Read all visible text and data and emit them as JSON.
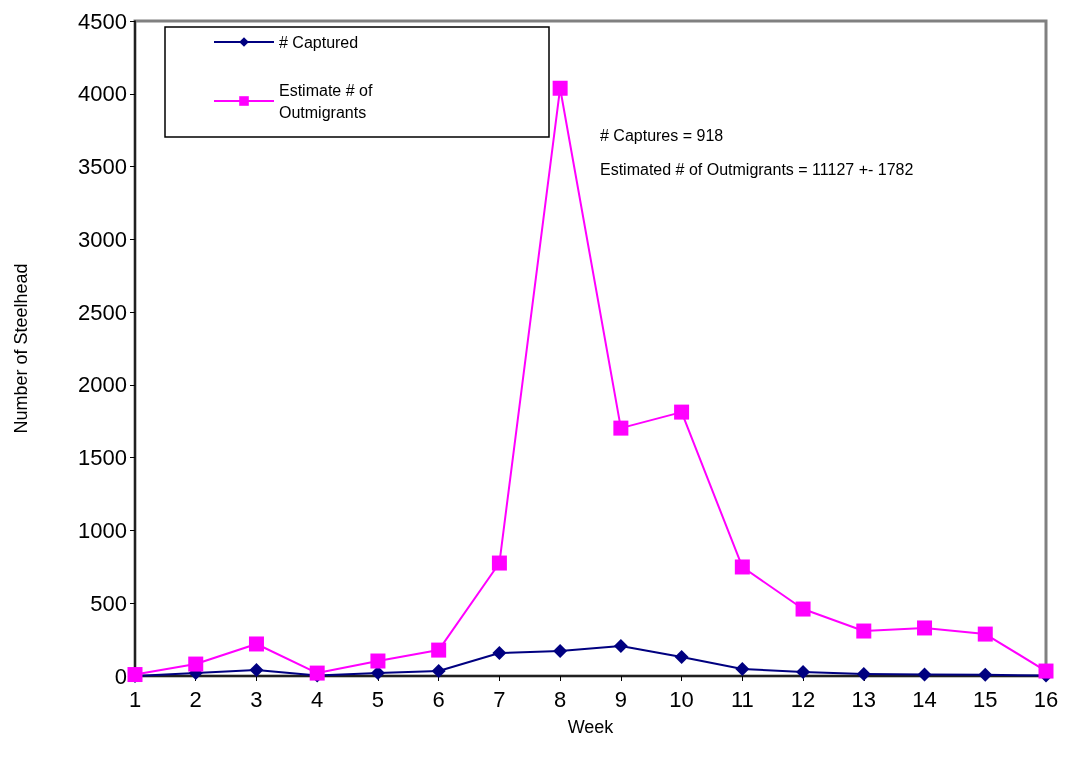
{
  "chart_data": {
    "type": "line",
    "xlabel": "Week",
    "ylabel": "Number of Steelhead",
    "x": [
      1,
      2,
      3,
      4,
      5,
      6,
      7,
      8,
      9,
      10,
      11,
      12,
      13,
      14,
      15,
      16
    ],
    "xlim": [
      1,
      16
    ],
    "xticks": [
      1,
      2,
      3,
      4,
      5,
      6,
      7,
      8,
      9,
      10,
      11,
      12,
      13,
      14,
      15,
      16
    ],
    "series": [
      {
        "name": "# Captured",
        "color": "#000080",
        "marker": "diamond",
        "values": [
          0,
          20,
          41,
          3,
          20,
          34,
          158,
          172,
          206,
          130,
          48,
          27,
          14,
          10,
          8,
          3
        ]
      },
      {
        "name": "Estimate # of Outmigrants",
        "color": "#ff00ff",
        "marker": "square",
        "values": [
          10,
          82,
          220,
          20,
          103,
          178,
          776,
          4038,
          1703,
          1813,
          749,
          460,
          309,
          330,
          288,
          34
        ]
      }
    ],
    "ylim": [
      0,
      4500
    ],
    "yticks": [
      0,
      500,
      1000,
      1500,
      2000,
      2500,
      3000,
      3500,
      4000,
      4500
    ],
    "grid": false,
    "legend": "top left",
    "line_style": "solid",
    "annotations": [
      "# Captures = 918",
      "Estimated # of Outmigrants = 11127 +- 1782"
    ]
  }
}
